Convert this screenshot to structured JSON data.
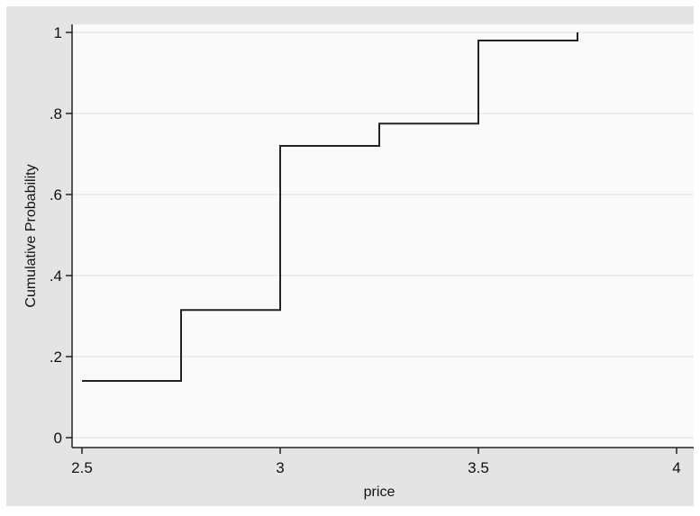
{
  "chart_data": {
    "type": "line",
    "subtype": "step-ecdf",
    "title": "",
    "xlabel": "price",
    "ylabel": "Cumulative Probability",
    "xlim": [
      2.5,
      4
    ],
    "ylim": [
      0,
      1
    ],
    "x_ticks": [
      2.5,
      3,
      3.5,
      4
    ],
    "x_tick_labels": [
      "2.5",
      "3",
      "3.5",
      "4"
    ],
    "y_ticks": [
      0,
      0.2,
      0.4,
      0.6,
      0.8,
      1
    ],
    "y_tick_labels": [
      "0",
      ".2",
      ".4",
      ".6",
      ".8",
      "1"
    ],
    "grid": "horizontal",
    "legend": "none",
    "series": [
      {
        "x": [
          2.5,
          2.75,
          3.0,
          3.25,
          3.5,
          3.75
        ],
        "y": [
          0.14,
          0.315,
          0.72,
          0.775,
          0.98,
          1.0
        ],
        "color": "#222222"
      }
    ],
    "colors": {
      "outer_background": "#e4e4e4",
      "plot_background": "#fafafa",
      "grid": "#dddddd",
      "axis": "#222222",
      "line": "#222222"
    }
  }
}
